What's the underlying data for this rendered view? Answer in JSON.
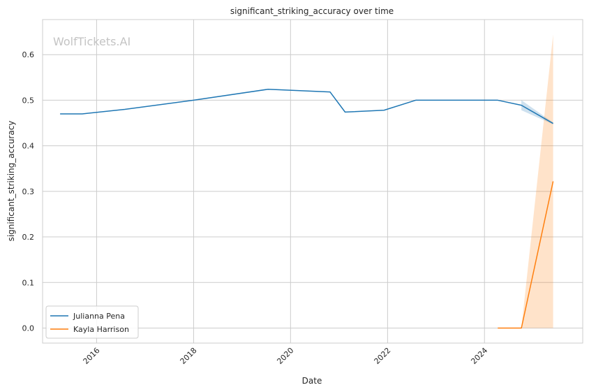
{
  "watermark": "WolfTickets.AI",
  "chart_data": {
    "type": "line",
    "title": "significant_striking_accuracy over time",
    "xlabel": "Date",
    "ylabel": "significant_striking_accuracy",
    "x_axis_type": "date",
    "xlim": [
      "2014-11-20",
      "2026-01-10"
    ],
    "ylim": [
      -0.033,
      0.677
    ],
    "x_ticks": [
      "2016",
      "2018",
      "2020",
      "2022",
      "2024"
    ],
    "x_tick_labels_rotation": 45,
    "y_ticks": [
      0.0,
      0.1,
      0.2,
      0.3,
      0.4,
      0.5,
      0.6
    ],
    "y_tick_labels": [
      "0.0",
      "0.1",
      "0.2",
      "0.3",
      "0.4",
      "0.5",
      "0.6"
    ],
    "grid": true,
    "legend_position": "bottom-left",
    "series": [
      {
        "name": "Julianna Pena",
        "color": "#1f77b4",
        "points": [
          {
            "x": "2015-04-01",
            "y": 0.47
          },
          {
            "x": "2015-09-15",
            "y": 0.47
          },
          {
            "x": "2016-08-01",
            "y": 0.48
          },
          {
            "x": "2018-01-01",
            "y": 0.5
          },
          {
            "x": "2019-07-15",
            "y": 0.524
          },
          {
            "x": "2020-10-25",
            "y": 0.518
          },
          {
            "x": "2021-02-15",
            "y": 0.474
          },
          {
            "x": "2021-12-05",
            "y": 0.478
          },
          {
            "x": "2022-08-01",
            "y": 0.5
          },
          {
            "x": "2024-04-10",
            "y": 0.5
          },
          {
            "x": "2024-10-05",
            "y": 0.489
          },
          {
            "x": "2025-06-01",
            "y": 0.449
          }
        ],
        "band": [
          {
            "x": "2024-10-05",
            "low": 0.478,
            "high": 0.5
          },
          {
            "x": "2025-06-01",
            "low": 0.447,
            "high": 0.451
          }
        ]
      },
      {
        "name": "Kayla Harrison",
        "color": "#ff7f0e",
        "points": [
          {
            "x": "2024-04-10",
            "y": 0.0
          },
          {
            "x": "2024-10-05",
            "y": 0.0
          },
          {
            "x": "2025-06-01",
            "y": 0.322
          }
        ],
        "band": [
          {
            "x": "2024-10-05",
            "low": 0.0,
            "high": 0.0
          },
          {
            "x": "2025-06-01",
            "low": 0.0,
            "high": 0.644
          }
        ]
      }
    ]
  }
}
